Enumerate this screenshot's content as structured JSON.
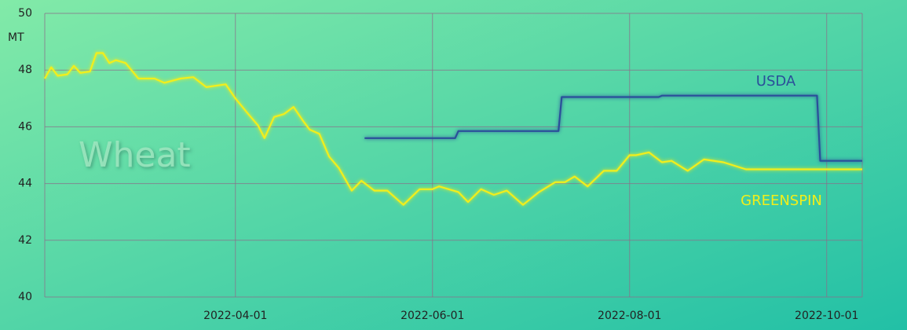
{
  "chart_data": {
    "type": "line",
    "y_label": "MT",
    "annotation": "Wheat",
    "xlim": [
      "2022-02-01",
      "2022-10-12"
    ],
    "xticks": [
      "2022-04-01",
      "2022-06-01",
      "2022-08-01",
      "2022-10-01"
    ],
    "ylim": [
      40,
      50
    ],
    "yticks": [
      40,
      42,
      44,
      46,
      48,
      50
    ],
    "grid": true,
    "series": [
      {
        "name": "USDA",
        "color": "#2b4f9a",
        "x": [
          "2022-05-11",
          "2022-06-08",
          "2022-06-09",
          "2022-07-10",
          "2022-07-11",
          "2022-08-10",
          "2022-08-11",
          "2022-09-28",
          "2022-09-29",
          "2022-10-12"
        ],
        "values": [
          45.6,
          45.6,
          45.85,
          45.85,
          47.05,
          47.05,
          47.1,
          47.1,
          44.8,
          44.8
        ]
      },
      {
        "name": "GREENSPIN",
        "color": "#f2ee1a",
        "x": [
          "2022-02-01",
          "2022-02-03",
          "2022-02-05",
          "2022-02-08",
          "2022-02-10",
          "2022-02-12",
          "2022-02-15",
          "2022-02-17",
          "2022-02-19",
          "2022-02-21",
          "2022-02-23",
          "2022-02-26",
          "2022-03-02",
          "2022-03-07",
          "2022-03-10",
          "2022-03-15",
          "2022-03-19",
          "2022-03-23",
          "2022-03-29",
          "2022-04-01",
          "2022-04-05",
          "2022-04-08",
          "2022-04-10",
          "2022-04-13",
          "2022-04-16",
          "2022-04-19",
          "2022-04-22",
          "2022-04-24",
          "2022-04-27",
          "2022-04-30",
          "2022-05-03",
          "2022-05-07",
          "2022-05-10",
          "2022-05-14",
          "2022-05-18",
          "2022-05-23",
          "2022-05-28",
          "2022-06-01",
          "2022-06-03",
          "2022-06-09",
          "2022-06-12",
          "2022-06-16",
          "2022-06-20",
          "2022-06-24",
          "2022-06-29",
          "2022-07-04",
          "2022-07-09",
          "2022-07-12",
          "2022-07-15",
          "2022-07-19",
          "2022-07-24",
          "2022-07-28",
          "2022-08-01",
          "2022-08-03",
          "2022-08-07",
          "2022-08-11",
          "2022-08-14",
          "2022-08-19",
          "2022-08-24",
          "2022-08-30",
          "2022-09-06",
          "2022-10-12"
        ],
        "values": [
          47.7,
          48.1,
          47.8,
          47.85,
          48.15,
          47.9,
          47.95,
          48.6,
          48.6,
          48.25,
          48.35,
          48.25,
          47.7,
          47.7,
          47.55,
          47.7,
          47.75,
          47.4,
          47.5,
          47.0,
          46.45,
          46.05,
          45.6,
          46.35,
          46.45,
          46.7,
          46.2,
          45.9,
          45.75,
          44.95,
          44.55,
          43.75,
          44.1,
          43.75,
          43.75,
          43.25,
          43.8,
          43.8,
          43.9,
          43.7,
          43.35,
          43.8,
          43.6,
          43.75,
          43.25,
          43.7,
          44.05,
          44.05,
          44.25,
          43.9,
          44.45,
          44.45,
          45.0,
          45.0,
          45.1,
          44.75,
          44.8,
          44.45,
          44.85,
          44.75,
          44.5,
          44.5
        ]
      }
    ]
  }
}
